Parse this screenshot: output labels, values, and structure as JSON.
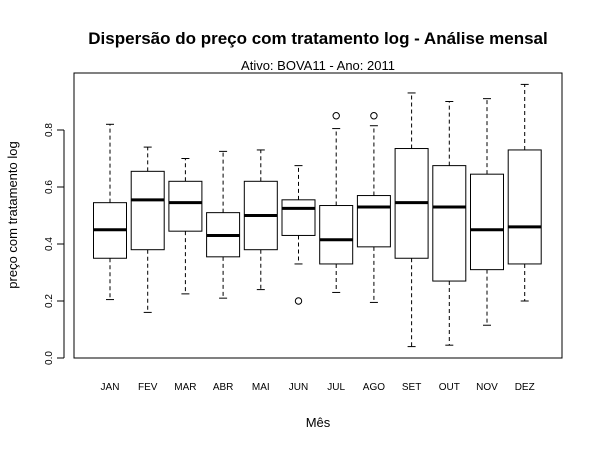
{
  "chart_data": {
    "type": "boxplot",
    "title": "Dispersão do  preço com tratamento log  - Análise mensal",
    "subtitle": "Ativo: BOVA11 - Ano: 2011",
    "xlabel": "Mês",
    "ylabel": "preço com tratamento log",
    "ylim": [
      0.0,
      0.96
    ],
    "yticks": [
      0.0,
      0.2,
      0.4,
      0.6,
      0.8
    ],
    "ytick_labels": [
      "0.0",
      "0.2",
      "0.4",
      "0.6",
      "0.8"
    ],
    "grid": false,
    "categories": [
      "JAN",
      "FEV",
      "MAR",
      "ABR",
      "MAI",
      "JUN",
      "JUL",
      "AGO",
      "SET",
      "OUT",
      "NOV",
      "DEZ"
    ],
    "boxes": [
      {
        "min": 0.205,
        "q1": 0.35,
        "median": 0.45,
        "q3": 0.545,
        "max": 0.82,
        "outliers": []
      },
      {
        "min": 0.16,
        "q1": 0.38,
        "median": 0.555,
        "q3": 0.655,
        "max": 0.74,
        "outliers": []
      },
      {
        "min": 0.225,
        "q1": 0.445,
        "median": 0.545,
        "q3": 0.62,
        "max": 0.7,
        "outliers": []
      },
      {
        "min": 0.21,
        "q1": 0.355,
        "median": 0.43,
        "q3": 0.51,
        "max": 0.725,
        "outliers": []
      },
      {
        "min": 0.24,
        "q1": 0.38,
        "median": 0.5,
        "q3": 0.62,
        "max": 0.73,
        "outliers": []
      },
      {
        "min": 0.33,
        "q1": 0.43,
        "median": 0.525,
        "q3": 0.555,
        "max": 0.675,
        "outliers": [
          0.2
        ]
      },
      {
        "min": 0.23,
        "q1": 0.33,
        "median": 0.415,
        "q3": 0.535,
        "max": 0.805,
        "outliers": [
          0.85
        ]
      },
      {
        "min": 0.195,
        "q1": 0.39,
        "median": 0.53,
        "q3": 0.57,
        "max": 0.815,
        "outliers": [
          0.85
        ]
      },
      {
        "min": 0.04,
        "q1": 0.35,
        "median": 0.545,
        "q3": 0.735,
        "max": 0.93,
        "outliers": []
      },
      {
        "min": 0.045,
        "q1": 0.27,
        "median": 0.53,
        "q3": 0.675,
        "max": 0.9,
        "outliers": []
      },
      {
        "min": 0.115,
        "q1": 0.31,
        "median": 0.45,
        "q3": 0.645,
        "max": 0.91,
        "outliers": []
      },
      {
        "min": 0.2,
        "q1": 0.33,
        "median": 0.46,
        "q3": 0.73,
        "max": 0.96,
        "outliers": []
      }
    ]
  }
}
